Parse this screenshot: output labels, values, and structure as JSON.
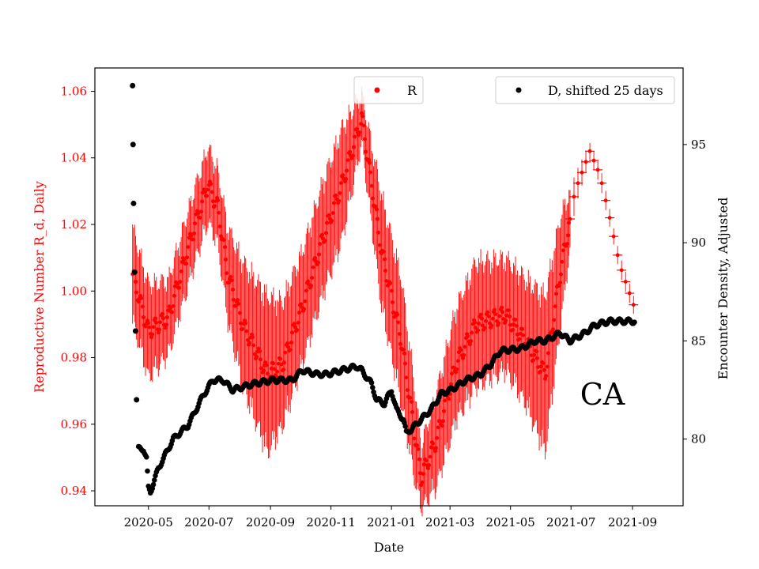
{
  "chart_data": {
    "type": "scatter",
    "xlabel": "Date",
    "ylabel_left": "Reproductive Number R_d, Daily",
    "ylabel_right": "Encounter Density, Adjusted",
    "annotation": "CA",
    "colors": {
      "r_series": "#ff0000",
      "d_series": "#000000",
      "left_axis": "#ff0000",
      "right_axis": "#000000"
    },
    "x_range": [
      -24,
      569
    ],
    "x_origin": "2020-04-01",
    "x_ticks": [
      {
        "day": 30,
        "label": "2020-05"
      },
      {
        "day": 91,
        "label": "2020-07"
      },
      {
        "day": 153,
        "label": "2020-09"
      },
      {
        "day": 214,
        "label": "2020-11"
      },
      {
        "day": 275,
        "label": "2021-01"
      },
      {
        "day": 334,
        "label": "2021-03"
      },
      {
        "day": 395,
        "label": "2021-05"
      },
      {
        "day": 456,
        "label": "2021-07"
      },
      {
        "day": 518,
        "label": "2021-09"
      }
    ],
    "y_left_range": [
      0.9355,
      1.067
    ],
    "y_left_ticks": [
      {
        "v": 0.94,
        "label": "0.94"
      },
      {
        "v": 0.96,
        "label": "0.96"
      },
      {
        "v": 0.98,
        "label": "0.98"
      },
      {
        "v": 1.0,
        "label": "1.00"
      },
      {
        "v": 1.02,
        "label": "1.02"
      },
      {
        "v": 1.04,
        "label": "1.04"
      },
      {
        "v": 1.06,
        "label": "1.06"
      }
    ],
    "y_right_range": [
      76.6,
      98.9
    ],
    "y_right_ticks": [
      {
        "v": 80,
        "label": "80"
      },
      {
        "v": 85,
        "label": "85"
      },
      {
        "v": 90,
        "label": "90"
      },
      {
        "v": 95,
        "label": "95"
      }
    ],
    "legend": [
      {
        "label": "R",
        "position": "top-center"
      },
      {
        "label": "D, shifted 25 days",
        "position": "top-right"
      }
    ],
    "series_R": {
      "name": "R",
      "keyframes": [
        [
          14,
          1.005,
          0.015
        ],
        [
          30,
          0.988,
          0.015
        ],
        [
          50,
          0.992,
          0.012
        ],
        [
          75,
          1.018,
          0.012
        ],
        [
          90,
          1.032,
          0.012
        ],
        [
          100,
          1.025,
          0.012
        ],
        [
          110,
          1.005,
          0.015
        ],
        [
          125,
          0.99,
          0.02
        ],
        [
          150,
          0.975,
          0.025
        ],
        [
          165,
          0.978,
          0.02
        ],
        [
          185,
          0.995,
          0.018
        ],
        [
          205,
          1.015,
          0.018
        ],
        [
          225,
          1.032,
          0.018
        ],
        [
          245,
          1.052,
          0.008
        ],
        [
          265,
          1.012,
          0.018
        ],
        [
          285,
          0.985,
          0.02
        ],
        [
          298,
          0.958,
          0.015
        ],
        [
          305,
          0.944,
          0.01
        ],
        [
          320,
          0.955,
          0.015
        ],
        [
          340,
          0.978,
          0.018
        ],
        [
          360,
          0.99,
          0.02
        ],
        [
          390,
          0.993,
          0.018
        ],
        [
          410,
          0.985,
          0.02
        ],
        [
          430,
          0.975,
          0.025
        ],
        [
          445,
          1.005,
          0.018
        ],
        [
          460,
          1.03,
          0.005
        ],
        [
          475,
          1.042,
          0.003
        ],
        [
          485,
          1.035,
          0.003
        ],
        [
          495,
          1.022,
          0.003
        ],
        [
          505,
          1.008,
          0.003
        ],
        [
          520,
          0.995,
          0.003
        ]
      ],
      "start_day": 14,
      "end_day": 520,
      "dense_until_day": 455,
      "sparse_step_days": 4
    },
    "series_D": {
      "name": "D, shifted 25 days",
      "outliers": [
        [
          14,
          98
        ],
        [
          14.5,
          95
        ],
        [
          15,
          92
        ],
        [
          16,
          88.5
        ],
        [
          17,
          85.5
        ],
        [
          18,
          82
        ]
      ],
      "keyframes": [
        [
          20,
          79.5
        ],
        [
          25,
          79.5
        ],
        [
          28,
          79
        ],
        [
          30,
          77.5
        ],
        [
          32,
          77.3
        ],
        [
          40,
          78.5
        ],
        [
          55,
          80
        ],
        [
          70,
          80.7
        ],
        [
          85,
          82.2
        ],
        [
          95,
          83
        ],
        [
          105,
          83
        ],
        [
          115,
          82.5
        ],
        [
          135,
          82.8
        ],
        [
          155,
          83
        ],
        [
          175,
          83
        ],
        [
          185,
          83.5
        ],
        [
          200,
          83.3
        ],
        [
          210,
          83.3
        ],
        [
          225,
          83.5
        ],
        [
          240,
          83.7
        ],
        [
          245,
          83.5
        ],
        [
          255,
          82.8
        ],
        [
          260,
          82
        ],
        [
          268,
          81.8
        ],
        [
          275,
          82.5
        ],
        [
          280,
          81.5
        ],
        [
          287,
          81
        ],
        [
          290,
          80.3
        ],
        [
          295,
          80.5
        ],
        [
          305,
          81
        ],
        [
          315,
          81.5
        ],
        [
          325,
          82.3
        ],
        [
          335,
          82.5
        ],
        [
          350,
          83
        ],
        [
          365,
          83.3
        ],
        [
          375,
          83.8
        ],
        [
          385,
          84.5
        ],
        [
          405,
          84.6
        ],
        [
          420,
          85
        ],
        [
          430,
          85
        ],
        [
          445,
          85.4
        ],
        [
          455,
          85
        ],
        [
          470,
          85.4
        ],
        [
          480,
          85.8
        ],
        [
          495,
          86
        ],
        [
          520,
          86
        ]
      ],
      "start_day": 20,
      "end_day": 520
    }
  }
}
